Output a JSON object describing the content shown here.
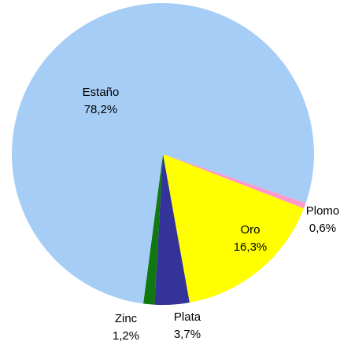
{
  "chart_data": {
    "type": "pie",
    "categories": [
      "Plomo",
      "Oro",
      "Plata",
      "Zinc",
      "Estaño"
    ],
    "values": [
      0.6,
      16.3,
      3.7,
      1.2,
      78.2
    ],
    "value_labels": [
      "0,6%",
      "16,3%",
      "3,7%",
      "1,2%",
      "78,2%"
    ],
    "colors": [
      "#ff99cc",
      "#ffff00",
      "#333399",
      "#117711",
      "#a6cdf5"
    ]
  }
}
